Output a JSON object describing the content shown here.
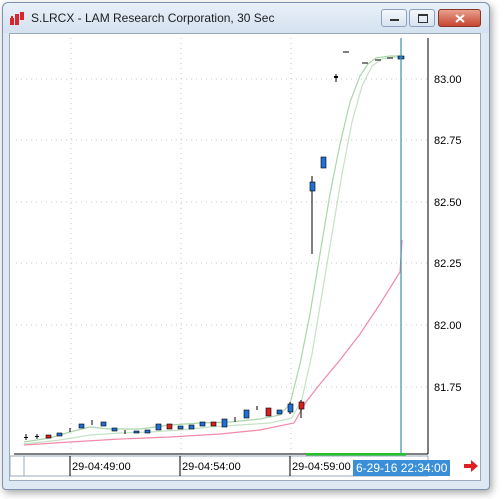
{
  "window": {
    "title": "S.LRCX - LAM Research Corporation, 30 Sec",
    "buttons": [
      "minimize",
      "maximize",
      "close"
    ]
  },
  "chart_data": {
    "type": "candlestick",
    "title": "S.LRCX - LAM Research Corporation, 30 Sec",
    "y_axis": {
      "side": "right",
      "ticks": [
        83.0,
        82.75,
        82.5,
        82.25,
        82.0,
        81.75
      ],
      "tick_labels": [
        "83.00",
        "82.75",
        "82.50",
        "82.25",
        "82.00",
        "81.75"
      ],
      "range": [
        81.5,
        83.15
      ]
    },
    "x_axis": {
      "tick_labels": [
        "29-04:49:00",
        "29-04:54:00",
        "29-04:59:00"
      ]
    },
    "cursor_label": "6-29-16 22:34:00",
    "grid": "dotted",
    "colors": {
      "up_candle": "#1f6fd6",
      "down_candle": "#d62020",
      "ma_fast": "#b8dcb8",
      "ma_slow": "#f08aa8",
      "cursor_line": "#3a8fb0",
      "volume_bar": "#22c22a"
    }
  },
  "icons": {
    "app": "chart-app-icon",
    "nav": "red-right-arrow-icon"
  }
}
